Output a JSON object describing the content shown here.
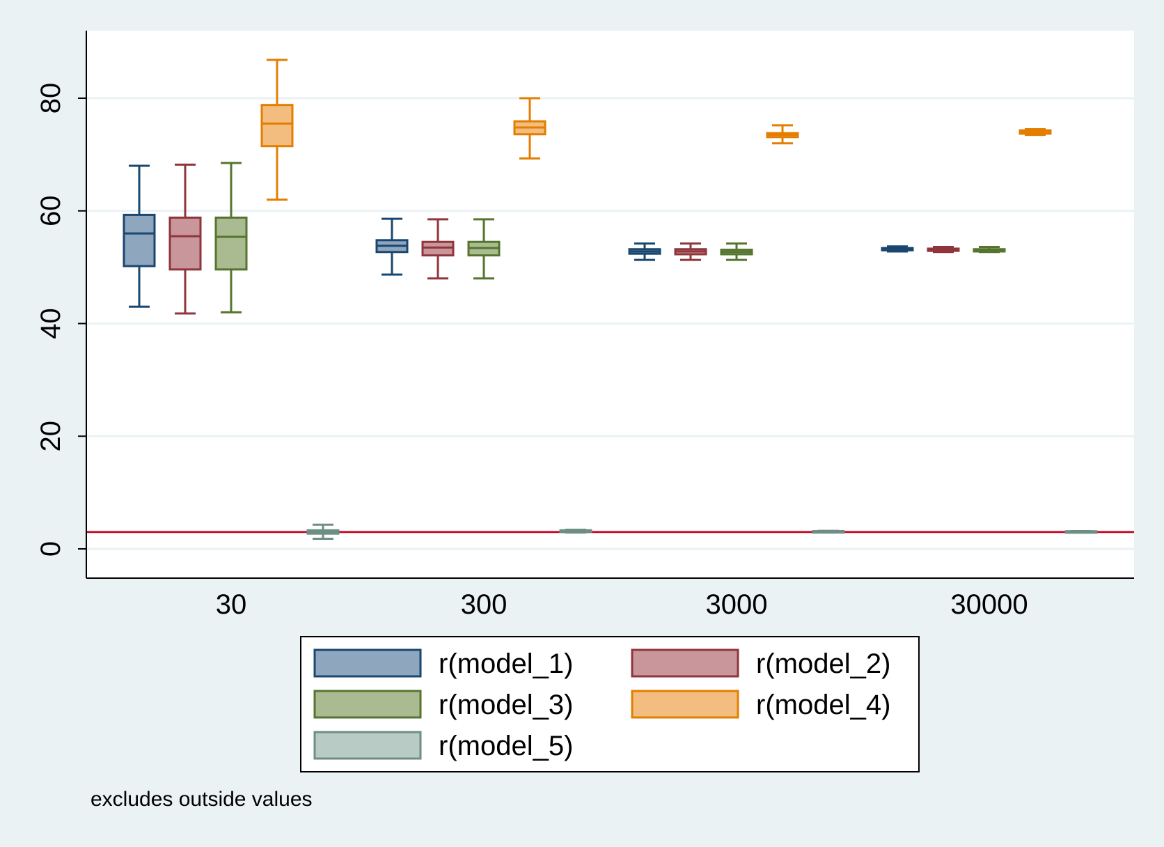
{
  "chart_data": {
    "type": "box",
    "categories": [
      "30",
      "300",
      "3000",
      "30000"
    ],
    "ylim": [
      -5,
      92
    ],
    "yticks": [
      0,
      20,
      40,
      60,
      80
    ],
    "grid": true,
    "legend_position": "bottom",
    "reference_line": {
      "y": 3,
      "color": "#c8102e"
    },
    "note": "excludes outside values",
    "series": [
      {
        "name": "r(model_1)",
        "color": "#1a476f",
        "fill": "#8ea6be",
        "boxes": [
          {
            "whisker_low": 43,
            "q1": 50.2,
            "median": 56,
            "q3": 59.3,
            "whisker_high": 68
          },
          {
            "whisker_low": 48.7,
            "q1": 52.7,
            "median": 53.8,
            "q3": 54.8,
            "whisker_high": 58.6
          },
          {
            "whisker_low": 51.3,
            "q1": 52.4,
            "median": 52.8,
            "q3": 53.2,
            "whisker_high": 54.2
          },
          {
            "whisker_low": 52.8,
            "q1": 53.0,
            "median": 53.2,
            "q3": 53.4,
            "whisker_high": 53.7
          }
        ]
      },
      {
        "name": "r(model_2)",
        "color": "#90353b",
        "fill": "#c9979b",
        "boxes": [
          {
            "whisker_low": 41.8,
            "q1": 49.6,
            "median": 55.5,
            "q3": 58.8,
            "whisker_high": 68.2
          },
          {
            "whisker_low": 48,
            "q1": 52.1,
            "median": 53.5,
            "q3": 54.5,
            "whisker_high": 58.5
          },
          {
            "whisker_low": 51.3,
            "q1": 52.3,
            "median": 52.8,
            "q3": 53.2,
            "whisker_high": 54.2
          },
          {
            "whisker_low": 52.7,
            "q1": 52.9,
            "median": 53.1,
            "q3": 53.3,
            "whisker_high": 53.6
          }
        ]
      },
      {
        "name": "r(model_3)",
        "color": "#55752f",
        "fill": "#aabb92",
        "boxes": [
          {
            "whisker_low": 42,
            "q1": 49.6,
            "median": 55.4,
            "q3": 58.8,
            "whisker_high": 68.5
          },
          {
            "whisker_low": 48,
            "q1": 52.1,
            "median": 53.4,
            "q3": 54.5,
            "whisker_high": 58.5
          },
          {
            "whisker_low": 51.3,
            "q1": 52.3,
            "median": 52.7,
            "q3": 53.1,
            "whisker_high": 54.2
          },
          {
            "whisker_low": 52.7,
            "q1": 52.8,
            "median": 53.0,
            "q3": 53.2,
            "whisker_high": 53.6
          }
        ]
      },
      {
        "name": "r(model_4)",
        "color": "#e37e00",
        "fill": "#f2bd7e",
        "boxes": [
          {
            "whisker_low": 62,
            "q1": 71.5,
            "median": 75.5,
            "q3": 78.8,
            "whisker_high": 86.8
          },
          {
            "whisker_low": 69.3,
            "q1": 73.6,
            "median": 74.8,
            "q3": 75.9,
            "whisker_high": 80
          },
          {
            "whisker_low": 72,
            "q1": 73.1,
            "median": 73.5,
            "q3": 73.8,
            "whisker_high": 75.2
          },
          {
            "whisker_low": 73.5,
            "q1": 73.7,
            "median": 74.0,
            "q3": 74.3,
            "whisker_high": 74.5
          }
        ]
      },
      {
        "name": "r(model_5)",
        "color": "#6e8e84",
        "fill": "#b8ccc5",
        "boxes": [
          {
            "whisker_low": 1.8,
            "q1": 2.7,
            "median": 3.0,
            "q3": 3.3,
            "whisker_high": 4.3
          },
          {
            "whisker_low": 2.9,
            "q1": 3.0,
            "median": 3.1,
            "q3": 3.3,
            "whisker_high": 3.4
          },
          {
            "whisker_low": 3.0,
            "q1": 3.05,
            "median": 3.1,
            "q3": 3.15,
            "whisker_high": 3.2
          },
          {
            "whisker_low": 3.05,
            "q1": 3.08,
            "median": 3.1,
            "q3": 3.12,
            "whisker_high": 3.15
          }
        ]
      }
    ]
  }
}
